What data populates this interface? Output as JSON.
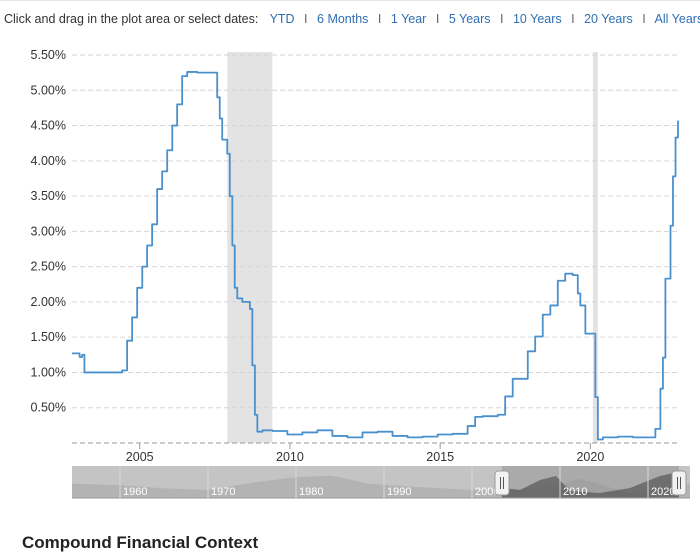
{
  "toolbar": {
    "prompt": "Click and drag in the plot area or select dates:",
    "ranges": [
      "YTD",
      "6 Months",
      "1 Year",
      "5 Years",
      "10 Years",
      "20 Years",
      "All Years"
    ],
    "separator": "I"
  },
  "footer": {
    "heading": "Compound Financial Context"
  },
  "colors": {
    "line": "#4a90cc",
    "recession": "#e3e3e3",
    "grid": "#d6d6d6",
    "navigator_bg": "#c4c4c4",
    "range_link": "#2f6fb2"
  },
  "chart_data": {
    "type": "line",
    "title": "",
    "xlabel": "",
    "ylabel": "",
    "x_ticks": [
      "2005",
      "2010",
      "2015",
      "2020"
    ],
    "y_ticks": [
      "0.50%",
      "1.00%",
      "1.50%",
      "2.00%",
      "2.50%",
      "3.00%",
      "3.50%",
      "4.00%",
      "4.50%",
      "5.00%",
      "5.50%"
    ],
    "xlim": [
      "2002-10-01",
      "2022-12-01"
    ],
    "ylim": [
      0,
      5.5
    ],
    "grid": true,
    "recessions": [
      [
        "2007-12-01",
        "2009-06-01"
      ],
      [
        "2020-02-01",
        "2020-04-01"
      ]
    ],
    "series": [
      {
        "x": [
          "2002-10-01",
          "2003-01-01",
          "2003-02-01",
          "2003-03-01",
          "2003-06-01",
          "2003-07-01",
          "2003-12-01",
          "2004-06-01",
          "2004-08-01",
          "2004-10-01",
          "2004-12-01",
          "2005-02-01",
          "2005-04-01",
          "2005-06-01",
          "2005-08-01",
          "2005-10-01",
          "2005-12-01",
          "2006-02-01",
          "2006-04-01",
          "2006-06-01",
          "2006-08-01",
          "2006-12-01",
          "2007-03-01",
          "2007-06-01",
          "2007-08-01",
          "2007-09-01",
          "2007-10-01",
          "2007-12-01",
          "2008-01-01",
          "2008-02-01",
          "2008-03-01",
          "2008-04-01",
          "2008-06-01",
          "2008-09-01",
          "2008-10-01",
          "2008-11-01",
          "2008-12-01",
          "2009-02-01",
          "2009-06-01",
          "2009-12-01",
          "2010-06-01",
          "2010-12-01",
          "2011-06-01",
          "2011-12-01",
          "2012-06-01",
          "2012-12-01",
          "2013-06-01",
          "2013-12-01",
          "2014-06-01",
          "2014-12-01",
          "2015-06-01",
          "2015-12-01",
          "2016-03-01",
          "2016-06-01",
          "2016-12-01",
          "2017-03-01",
          "2017-06-01",
          "2017-12-01",
          "2018-03-01",
          "2018-06-01",
          "2018-09-01",
          "2018-12-01",
          "2019-03-01",
          "2019-06-01",
          "2019-08-01",
          "2019-09-01",
          "2019-11-01",
          "2020-01-01",
          "2020-03-01",
          "2020-04-01",
          "2020-06-01",
          "2020-12-01",
          "2021-06-01",
          "2021-12-01",
          "2022-03-01",
          "2022-05-01",
          "2022-06-01",
          "2022-07-01",
          "2022-09-01",
          "2022-10-01",
          "2022-11-01",
          "2022-12-01"
        ],
        "y": [
          1.27,
          1.22,
          1.25,
          1.0,
          1.0,
          1.0,
          1.0,
          1.03,
          1.45,
          1.78,
          2.2,
          2.5,
          2.8,
          3.1,
          3.6,
          3.85,
          4.15,
          4.5,
          4.8,
          5.2,
          5.26,
          5.25,
          5.25,
          5.25,
          4.9,
          4.6,
          4.3,
          4.1,
          3.5,
          2.8,
          2.2,
          2.05,
          2.0,
          1.9,
          1.1,
          0.4,
          0.16,
          0.18,
          0.17,
          0.12,
          0.15,
          0.18,
          0.1,
          0.08,
          0.15,
          0.16,
          0.1,
          0.08,
          0.09,
          0.12,
          0.13,
          0.24,
          0.37,
          0.38,
          0.4,
          0.66,
          0.91,
          1.3,
          1.51,
          1.82,
          1.95,
          2.3,
          2.4,
          2.38,
          2.12,
          1.95,
          1.55,
          1.55,
          0.65,
          0.05,
          0.08,
          0.09,
          0.08,
          0.08,
          0.2,
          0.77,
          1.21,
          2.33,
          3.08,
          3.78,
          4.33,
          4.57
        ]
      }
    ],
    "navigator": {
      "tick_labels": [
        "1960",
        "1970",
        "1980",
        "1990",
        "2000",
        "2010",
        "2020"
      ],
      "selected_range": [
        "2002-10-01",
        "2022-12-01"
      ]
    }
  }
}
